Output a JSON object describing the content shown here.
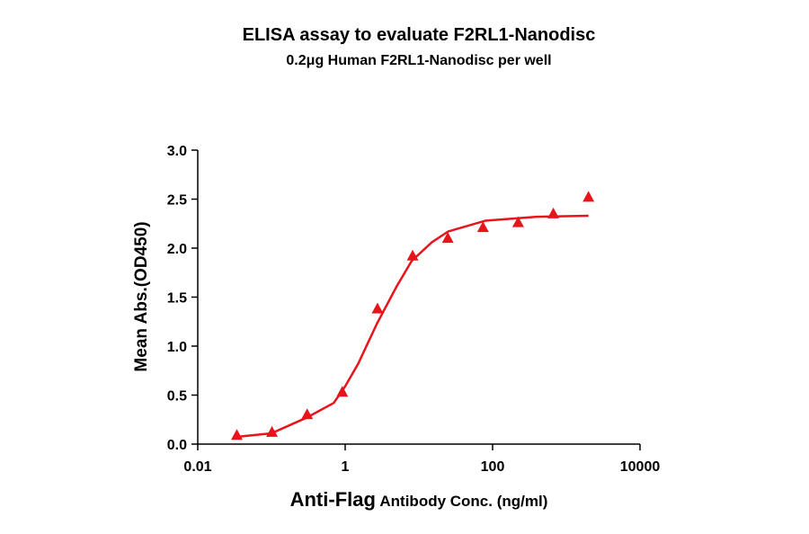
{
  "chart_data": {
    "type": "scatter",
    "title": "ELISA assay to evaluate F2RL1-Nanodisc",
    "subtitle": "0.2μg Human F2RL1-Nanodisc per well",
    "x_label": [
      "Anti-Flag",
      "Antibody Conc. (ng/ml)"
    ],
    "y_label": "Mean Abs.(OD450)",
    "x_scale": "log",
    "xlim": [
      0.01,
      10000
    ],
    "xticks": [
      0.01,
      1,
      100,
      10000
    ],
    "ylim": [
      0,
      3
    ],
    "yticks": [
      {
        "value": 0,
        "label": "0.0"
      },
      0.5,
      {
        "value": 1,
        "label": "1.0"
      },
      1.5,
      {
        "value": 2,
        "label": "2.0"
      },
      2.5,
      {
        "value": 3,
        "label": "3.0"
      }
    ],
    "series": [
      {
        "color": "#e8141b",
        "x": [
          0.0339,
          0.1016,
          0.3048,
          0.9145,
          2.743,
          8.23,
          24.69,
          74.07,
          222.2,
          666.7,
          2000
        ],
        "values": [
          0.09,
          0.12,
          0.3,
          0.53,
          1.38,
          1.92,
          2.1,
          2.21,
          2.26,
          2.35,
          2.52
        ]
      }
    ],
    "fit": {
      "color": "#e8141b",
      "x": [
        0.03,
        0.1,
        0.3,
        0.7,
        1,
        1.5,
        2.7,
        5,
        8,
        15,
        25,
        80,
        400,
        2000
      ],
      "values": [
        0.07,
        0.11,
        0.27,
        0.42,
        0.59,
        0.82,
        1.23,
        1.61,
        1.87,
        2.06,
        2.17,
        2.28,
        2.32,
        2.33
      ]
    }
  }
}
